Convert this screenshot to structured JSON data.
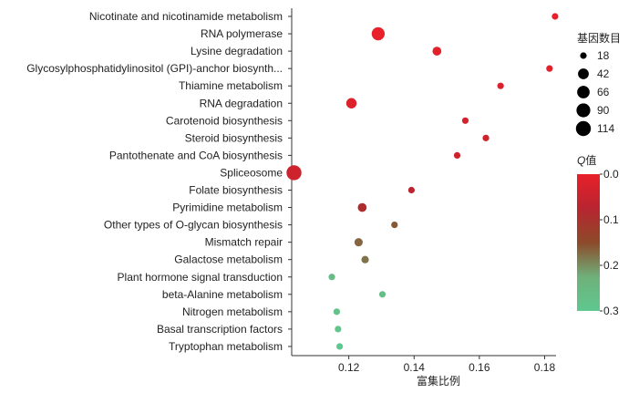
{
  "chart_data": {
    "type": "scatter",
    "title": "",
    "xlabel": "富集比例",
    "ylabel": "",
    "xlim": [
      0.1025,
      0.1835
    ],
    "xticks": [
      0.12,
      0.14,
      0.16,
      0.18
    ],
    "xtick_labels": [
      "0.12",
      "0.14",
      "0.16",
      "0.18"
    ],
    "grid": false,
    "categories": [
      "Nicotinate and nicotinamide metabolism",
      "RNA polymerase",
      "Lysine degradation",
      "Glycosylphosphatidylinositol (GPI)-anchor biosynth...",
      "Thiamine metabolism",
      "RNA degradation",
      "Carotenoid biosynthesis",
      "Steroid biosynthesis",
      "Pantothenate and CoA biosynthesis",
      "Spliceosome",
      "Folate biosynthesis",
      "Pyrimidine metabolism",
      "Other types of O-glycan biosynthesis",
      "Mismatch repair",
      "Galactose metabolism",
      "Plant hormone signal transduction",
      "beta-Alanine metabolism",
      "Nitrogen metabolism",
      "Basal transcription factors",
      "Tryptophan metabolism"
    ],
    "points": [
      {
        "x": 0.1832,
        "count": 18,
        "q": 0.0
      },
      {
        "x": 0.129,
        "count": 75,
        "q": 0.0
      },
      {
        "x": 0.147,
        "count": 25,
        "q": 0.01
      },
      {
        "x": 0.1815,
        "count": 16,
        "q": 0.01
      },
      {
        "x": 0.1665,
        "count": 13,
        "q": 0.02
      },
      {
        "x": 0.1208,
        "count": 38,
        "q": 0.02
      },
      {
        "x": 0.1557,
        "count": 15,
        "q": 0.03
      },
      {
        "x": 0.162,
        "count": 14,
        "q": 0.04
      },
      {
        "x": 0.1532,
        "count": 13,
        "q": 0.04
      },
      {
        "x": 0.1032,
        "count": 114,
        "q": 0.04
      },
      {
        "x": 0.1392,
        "count": 16,
        "q": 0.07
      },
      {
        "x": 0.1241,
        "count": 25,
        "q": 0.09
      },
      {
        "x": 0.134,
        "count": 16,
        "q": 0.16
      },
      {
        "x": 0.123,
        "count": 22,
        "q": 0.17
      },
      {
        "x": 0.125,
        "count": 19,
        "q": 0.18
      },
      {
        "x": 0.1148,
        "count": 18,
        "q": 0.26
      },
      {
        "x": 0.1303,
        "count": 13,
        "q": 0.27
      },
      {
        "x": 0.1163,
        "count": 14,
        "q": 0.28
      },
      {
        "x": 0.1167,
        "count": 15,
        "q": 0.29
      },
      {
        "x": 0.1172,
        "count": 15,
        "q": 0.3
      }
    ],
    "size_legend": {
      "title": "基因数目",
      "values": [
        18,
        42,
        66,
        90,
        114
      ],
      "labels": [
        "18",
        "42",
        "66",
        "90",
        "114"
      ]
    },
    "color_legend": {
      "title_italic": "Q",
      "title_rest": "值",
      "range": [
        0.0,
        0.3
      ],
      "ticks": [
        0.0,
        0.1,
        0.2,
        0.3
      ],
      "tick_labels": [
        "0.0",
        "0.1",
        "0.2",
        "0.3"
      ],
      "colors": [
        "#e8202a",
        "#b82530",
        "#8c4a2a",
        "#6fb07a",
        "#5fc88f"
      ]
    }
  }
}
